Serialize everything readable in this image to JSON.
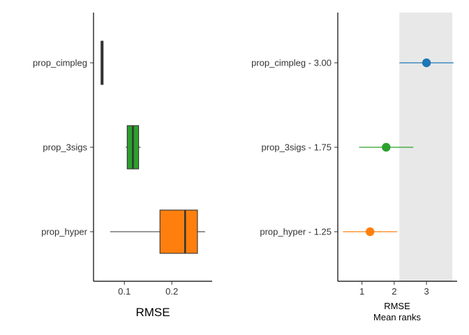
{
  "chart_data": [
    {
      "type": "box",
      "xlabel": "RMSE",
      "categories": [
        "prop_cimpleg",
        "prop_3sigs",
        "prop_hyper"
      ],
      "x_ticks": [
        0.1,
        0.2
      ],
      "x_tick_labels": [
        "0.1",
        "0.2"
      ],
      "xlim": [
        0.035,
        0.285
      ],
      "series": [
        {
          "category": "prop_cimpleg",
          "min": 0.052,
          "q1": 0.052,
          "median": 0.053,
          "q3": 0.054,
          "max": 0.055,
          "color": "#333333"
        },
        {
          "category": "prop_3sigs",
          "min": 0.103,
          "q1": 0.106,
          "median": 0.118,
          "q3": 0.13,
          "max": 0.134,
          "color": "#2ca02c"
        },
        {
          "category": "prop_hyper",
          "min": 0.07,
          "q1": 0.175,
          "median": 0.228,
          "q3": 0.254,
          "max": 0.27,
          "color": "#ff7f0e"
        }
      ]
    },
    {
      "type": "scatter",
      "xlabel": "RMSE",
      "xlabel2": "Mean ranks",
      "categories": [
        "prop_cimpleg - 3.00",
        "prop_3sigs - 1.75",
        "prop_hyper - 1.25"
      ],
      "x_ticks": [
        1,
        2,
        3
      ],
      "x_tick_labels": [
        "1",
        "2",
        "3"
      ],
      "xlim": [
        0.25,
        3.95
      ],
      "shaded_region": [
        2.16,
        3.95
      ],
      "series": [
        {
          "category": "prop_cimpleg - 3.00",
          "value": 3.0,
          "lower": 2.16,
          "upper": 3.84,
          "color": "#1f77b4"
        },
        {
          "category": "prop_3sigs - 1.75",
          "value": 1.75,
          "lower": 0.91,
          "upper": 2.59,
          "color": "#2ca02c"
        },
        {
          "category": "prop_hyper - 1.25",
          "value": 1.25,
          "lower": 0.41,
          "upper": 2.09,
          "color": "#ff7f0e"
        }
      ]
    }
  ]
}
